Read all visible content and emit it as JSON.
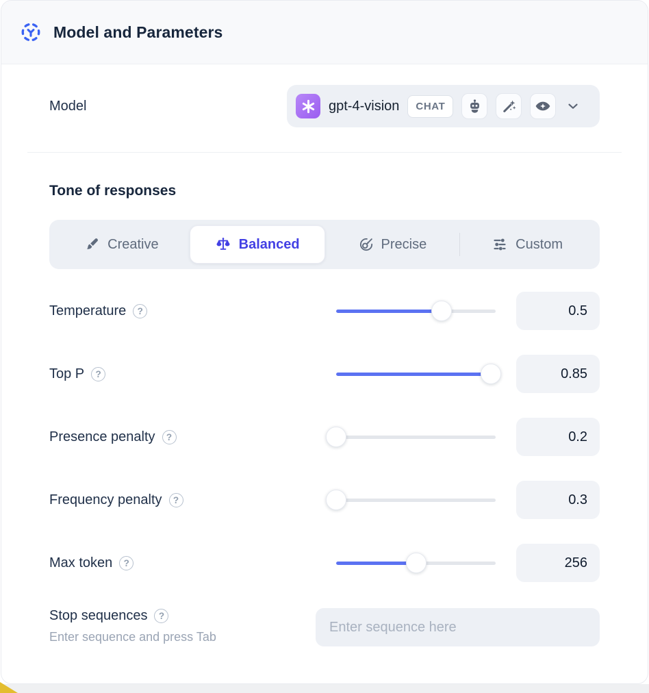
{
  "header": {
    "title": "Model and Parameters"
  },
  "model_section": {
    "label": "Model",
    "selected_model": {
      "name": "gpt-4-vision",
      "provider": "openai",
      "type_badge": "CHAT",
      "capabilities": [
        "robot",
        "magic-wand",
        "vision"
      ]
    }
  },
  "tone_section": {
    "heading": "Tone of responses",
    "tabs": [
      {
        "label": "Creative",
        "icon": "brush",
        "selected": false
      },
      {
        "label": "Balanced",
        "icon": "scale",
        "selected": true
      },
      {
        "label": "Precise",
        "icon": "target",
        "selected": false
      },
      {
        "label": "Custom",
        "icon": "sliders",
        "selected": false
      }
    ]
  },
  "parameters": [
    {
      "label": "Temperature",
      "value": "0.5",
      "slider_percent": 66
    },
    {
      "label": "Top P",
      "value": "0.85",
      "slider_percent": 97
    },
    {
      "label": "Presence penalty",
      "value": "0.2",
      "slider_percent": 0
    },
    {
      "label": "Frequency penalty",
      "value": "0.3",
      "slider_percent": 0
    },
    {
      "label": "Max token",
      "value": "256",
      "slider_percent": 50
    }
  ],
  "stop_sequences": {
    "label": "Stop sequences",
    "hint": "Enter sequence and press Tab",
    "placeholder": "Enter sequence here"
  },
  "icons": {
    "help_glyph": "?"
  },
  "colors": {
    "accent": "#5b72f2",
    "selected_tab": "#4340e4",
    "openai_badge": "#a768f5"
  }
}
